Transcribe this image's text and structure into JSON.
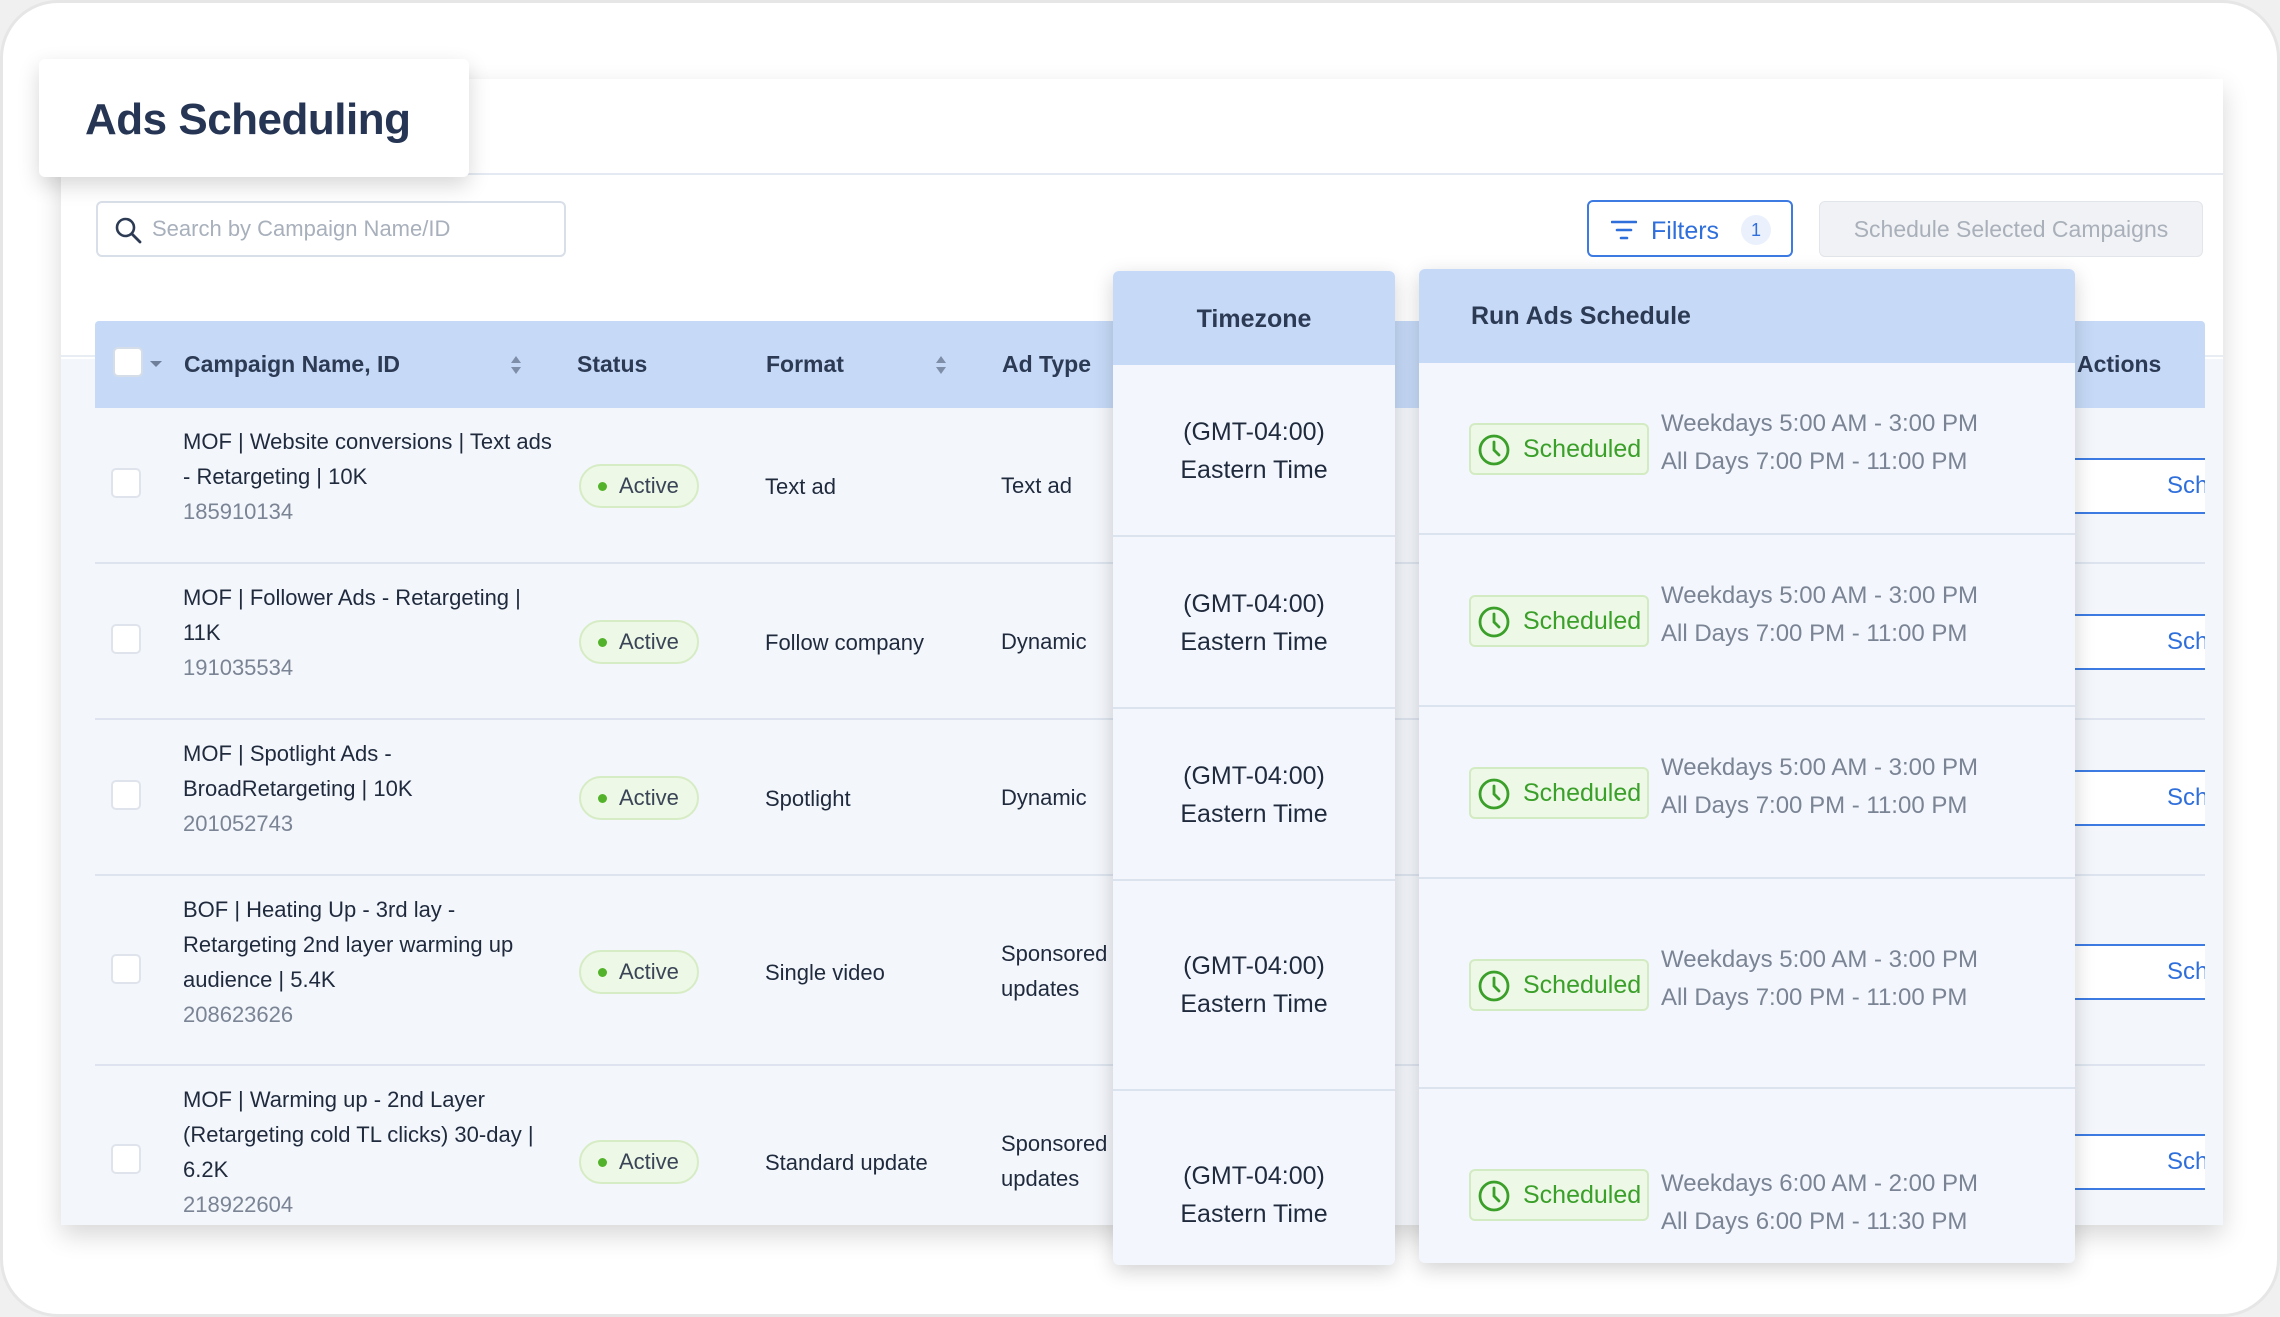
{
  "page": {
    "title": "Ads Scheduling"
  },
  "toolbar": {
    "search_placeholder": "Search by Campaign Name/ID",
    "filters_label": "Filters",
    "filters_count": "1",
    "schedule_selected_label": "Schedule Selected Campaigns"
  },
  "table": {
    "headers": {
      "campaign": "Campaign Name, ID",
      "status": "Status",
      "format": "Format",
      "ad_type": "Ad Type",
      "timezone": "Timezone",
      "run_schedule": "Run Ads Schedule",
      "actions": "Actions"
    },
    "rows": [
      {
        "name": "MOF | Website conversions | Text ads - Retargeting | 10K",
        "id": "185910134",
        "status": "Active",
        "format": "Text ad",
        "ad_type": "Text ad",
        "timezone_offset": "(GMT-04:00)",
        "timezone_name": "Eastern Time",
        "schedule_status": "Scheduled",
        "schedule_line1": "Weekdays 5:00 AM - 3:00 PM",
        "schedule_line2": "All Days 7:00 PM - 11:00 PM",
        "action_label": "Schedule"
      },
      {
        "name": "MOF | Follower Ads - Retargeting | 11K",
        "id": "191035534",
        "status": "Active",
        "format": "Follow company",
        "ad_type": "Dynamic",
        "timezone_offset": "(GMT-04:00)",
        "timezone_name": "Eastern Time",
        "schedule_status": "Scheduled",
        "schedule_line1": "Weekdays 5:00 AM - 3:00 PM",
        "schedule_line2": "All Days 7:00 PM - 11:00 PM",
        "action_label": "Schedule"
      },
      {
        "name": "MOF | Spotlight Ads - BroadRetargeting | 10K",
        "id": "201052743",
        "status": "Active",
        "format": "Spotlight",
        "ad_type": "Dynamic",
        "timezone_offset": "(GMT-04:00)",
        "timezone_name": "Eastern Time",
        "schedule_status": "Scheduled",
        "schedule_line1": "Weekdays 5:00 AM - 3:00 PM",
        "schedule_line2": "All Days 7:00 PM - 11:00 PM",
        "action_label": "Schedule"
      },
      {
        "name": "BOF | Heating Up - 3rd lay - Retargeting 2nd layer warming up audience | 5.4K",
        "id": "208623626",
        "status": "Active",
        "format": "Single video",
        "ad_type": "Sponsored updates",
        "timezone_offset": "(GMT-04:00)",
        "timezone_name": "Eastern Time",
        "schedule_status": "Scheduled",
        "schedule_line1": "Weekdays 5:00 AM - 3:00 PM",
        "schedule_line2": "All Days 7:00 PM - 11:00 PM",
        "action_label": "Schedule"
      },
      {
        "name": "MOF | Warming up - 2nd Layer (Retargeting cold TL clicks) 30-day | 6.2K",
        "id": "218922604",
        "status": "Active",
        "format": "Standard update",
        "ad_type": "Sponsored updates",
        "timezone_offset": "(GMT-04:00)",
        "timezone_name": "Eastern Time",
        "schedule_status": "Scheduled",
        "schedule_line1": "Weekdays 6:00 AM - 2:00 PM",
        "schedule_line2": "All Days 6:00 PM - 11:30 PM",
        "action_label": "Schedule"
      }
    ]
  },
  "colors": {
    "accent_blue": "#2f6fdc",
    "header_blue": "#c6daf8",
    "success_green": "#3aa02a",
    "status_dot_green": "#52b32a"
  },
  "icons": {
    "search": "search-icon",
    "filter": "filter-icon",
    "sort": "sort-icon",
    "clock": "clock-icon",
    "caret": "chevron-down-icon"
  }
}
